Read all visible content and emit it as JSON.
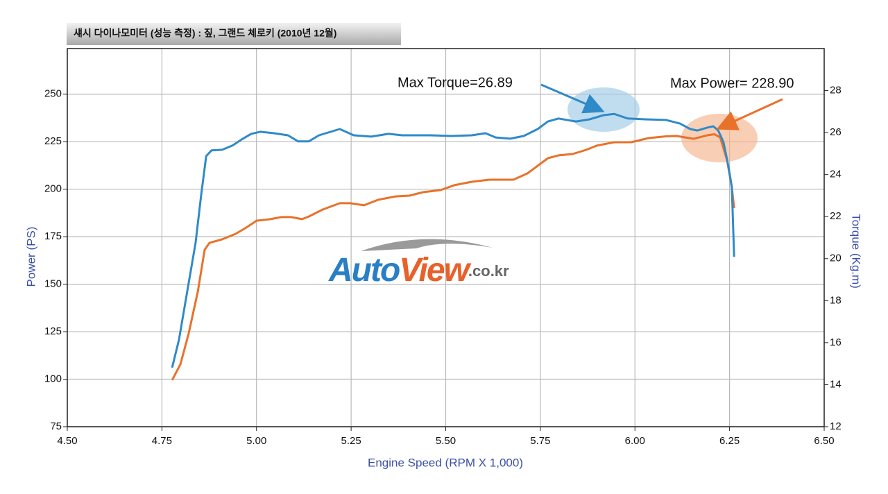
{
  "header": "섀시 다이나모미터 (성능 측정) : 짚, 그랜드 체로키 (2010년 12월)",
  "watermark": {
    "part1": "Auto",
    "part2": "View",
    "part3": ".co.kr"
  },
  "chart_data": {
    "type": "line",
    "x_label": "Engine Speed (RPM X 1,000)",
    "y_label": "Power (PS)",
    "y2_label": "Torque (Kg.m)",
    "xlim": [
      4.5,
      6.5
    ],
    "xticks": [
      {
        "value": 4.5,
        "label": "4.50"
      },
      {
        "value": 4.75,
        "label": "4.75"
      },
      {
        "value": 5,
        "label": "5.00"
      },
      {
        "value": 5.25,
        "label": "5.25"
      },
      {
        "value": 5.5,
        "label": "5.50"
      },
      {
        "value": 5.75,
        "label": "5.75"
      },
      {
        "value": 6,
        "label": "6.00"
      },
      {
        "value": 6.25,
        "label": "6.25"
      },
      {
        "value": 6.5,
        "label": "6.50"
      }
    ],
    "ylim": [
      75,
      274
    ],
    "yticks": [
      75,
      100,
      125,
      150,
      175,
      200,
      225,
      250
    ],
    "y2lim": [
      12,
      30
    ],
    "y2ticks": [
      12,
      14,
      16,
      18,
      20,
      22,
      24,
      26,
      28
    ],
    "grid": true,
    "annotations": [
      "Max Torque=26.89",
      "Max Power= 228.90"
    ],
    "series": [
      {
        "color": "#e8722a",
        "axis": "y",
        "x": [
          4.777,
          4.799,
          4.821,
          4.845,
          4.863,
          4.876,
          4.909,
          4.945,
          4.973,
          5.0,
          5.037,
          5.065,
          5.092,
          5.12,
          5.138,
          5.175,
          5.22,
          5.248,
          5.284,
          5.321,
          5.367,
          5.404,
          5.44,
          5.486,
          5.523,
          5.569,
          5.615,
          5.679,
          5.716,
          5.77,
          5.798,
          5.835,
          5.871,
          5.899,
          5.945,
          5.99,
          6.036,
          6.082,
          6.11,
          6.155,
          6.192,
          6.21,
          6.225,
          6.243,
          6.256,
          6.262
        ],
        "values": [
          99.5,
          107.9,
          124.3,
          146.2,
          168.1,
          171.8,
          173.6,
          176.5,
          179.8,
          183.4,
          184.2,
          185.3,
          185.3,
          184.2,
          185.6,
          189.3,
          192.6,
          192.6,
          191.5,
          194.4,
          196.2,
          196.6,
          198.4,
          199.5,
          202.1,
          203.9,
          205.0,
          205.0,
          208.3,
          216.3,
          217.8,
          218.5,
          220.7,
          222.9,
          224.7,
          224.7,
          226.9,
          227.8,
          228.0,
          226.5,
          228.4,
          228.9,
          227.3,
          215.6,
          201.0,
          190.0
        ]
      },
      {
        "color": "#2f8ac8",
        "axis": "y2",
        "x": [
          4.777,
          4.795,
          4.817,
          4.839,
          4.854,
          4.867,
          4.881,
          4.909,
          4.936,
          4.964,
          4.986,
          5.01,
          5.046,
          5.083,
          5.11,
          5.138,
          5.165,
          5.22,
          5.257,
          5.303,
          5.349,
          5.385,
          5.459,
          5.514,
          5.569,
          5.605,
          5.632,
          5.67,
          5.706,
          5.743,
          5.77,
          5.798,
          5.844,
          5.88,
          5.917,
          5.945,
          5.981,
          6.027,
          6.082,
          6.119,
          6.146,
          6.165,
          6.192,
          6.207,
          6.22,
          6.234,
          6.247,
          6.256,
          6.262
        ],
        "values": [
          14.81,
          16.13,
          18.44,
          20.75,
          23.06,
          24.88,
          25.15,
          25.18,
          25.38,
          25.71,
          25.94,
          26.04,
          25.97,
          25.87,
          25.58,
          25.58,
          25.87,
          26.17,
          25.87,
          25.81,
          25.94,
          25.87,
          25.87,
          25.84,
          25.87,
          25.97,
          25.77,
          25.71,
          25.84,
          26.17,
          26.53,
          26.67,
          26.53,
          26.63,
          26.83,
          26.89,
          26.67,
          26.63,
          26.6,
          26.43,
          26.17,
          26.1,
          26.24,
          26.3,
          26.1,
          25.54,
          24.39,
          23.4,
          20.09
        ]
      }
    ]
  }
}
